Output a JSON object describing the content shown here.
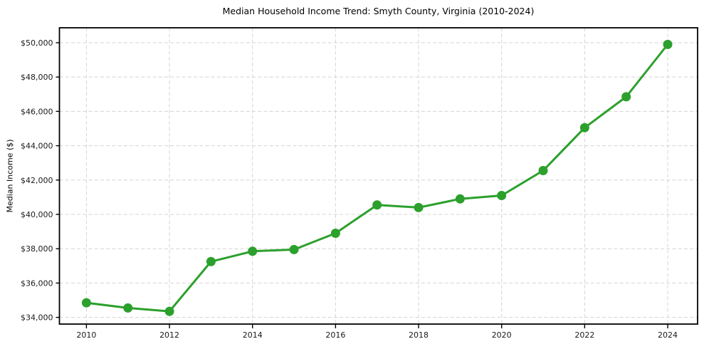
{
  "chart_data": {
    "type": "line",
    "title": "Median Household Income Trend: Smyth County, Virginia (2010-2024)",
    "xlabel": "",
    "ylabel": "Median Income ($)",
    "x": [
      2010,
      2011,
      2012,
      2013,
      2014,
      2015,
      2016,
      2017,
      2018,
      2019,
      2020,
      2021,
      2022,
      2023,
      2024
    ],
    "series": [
      {
        "values": [
          34850,
          34550,
          34350,
          37250,
          37850,
          37950,
          38900,
          40550,
          40400,
          40900,
          41100,
          42550,
          45050,
          46850,
          49900
        ],
        "color": "#2ca02c",
        "marker": "circle"
      }
    ],
    "xlim": [
      2009.35,
      2024.72
    ],
    "ylim": [
      33610,
      50870
    ],
    "xticks": [
      2010,
      2012,
      2014,
      2016,
      2018,
      2020,
      2022,
      2024
    ],
    "xtick_labels": [
      "2010",
      "2012",
      "2014",
      "2016",
      "2018",
      "2020",
      "2022",
      "2024"
    ],
    "yticks": [
      34000,
      36000,
      38000,
      40000,
      42000,
      44000,
      46000,
      48000,
      50000
    ],
    "ytick_labels": [
      "$34,000",
      "$36,000",
      "$38,000",
      "$40,000",
      "$42,000",
      "$44,000",
      "$46,000",
      "$48,000",
      "$50,000"
    ],
    "grid": true,
    "grid_style": "dashed",
    "grid_color": "#d4d4d4",
    "axis_color": "#000000",
    "tick_label_color": "#1a1a1a",
    "background": "#ffffff",
    "legend_position": "none"
  }
}
